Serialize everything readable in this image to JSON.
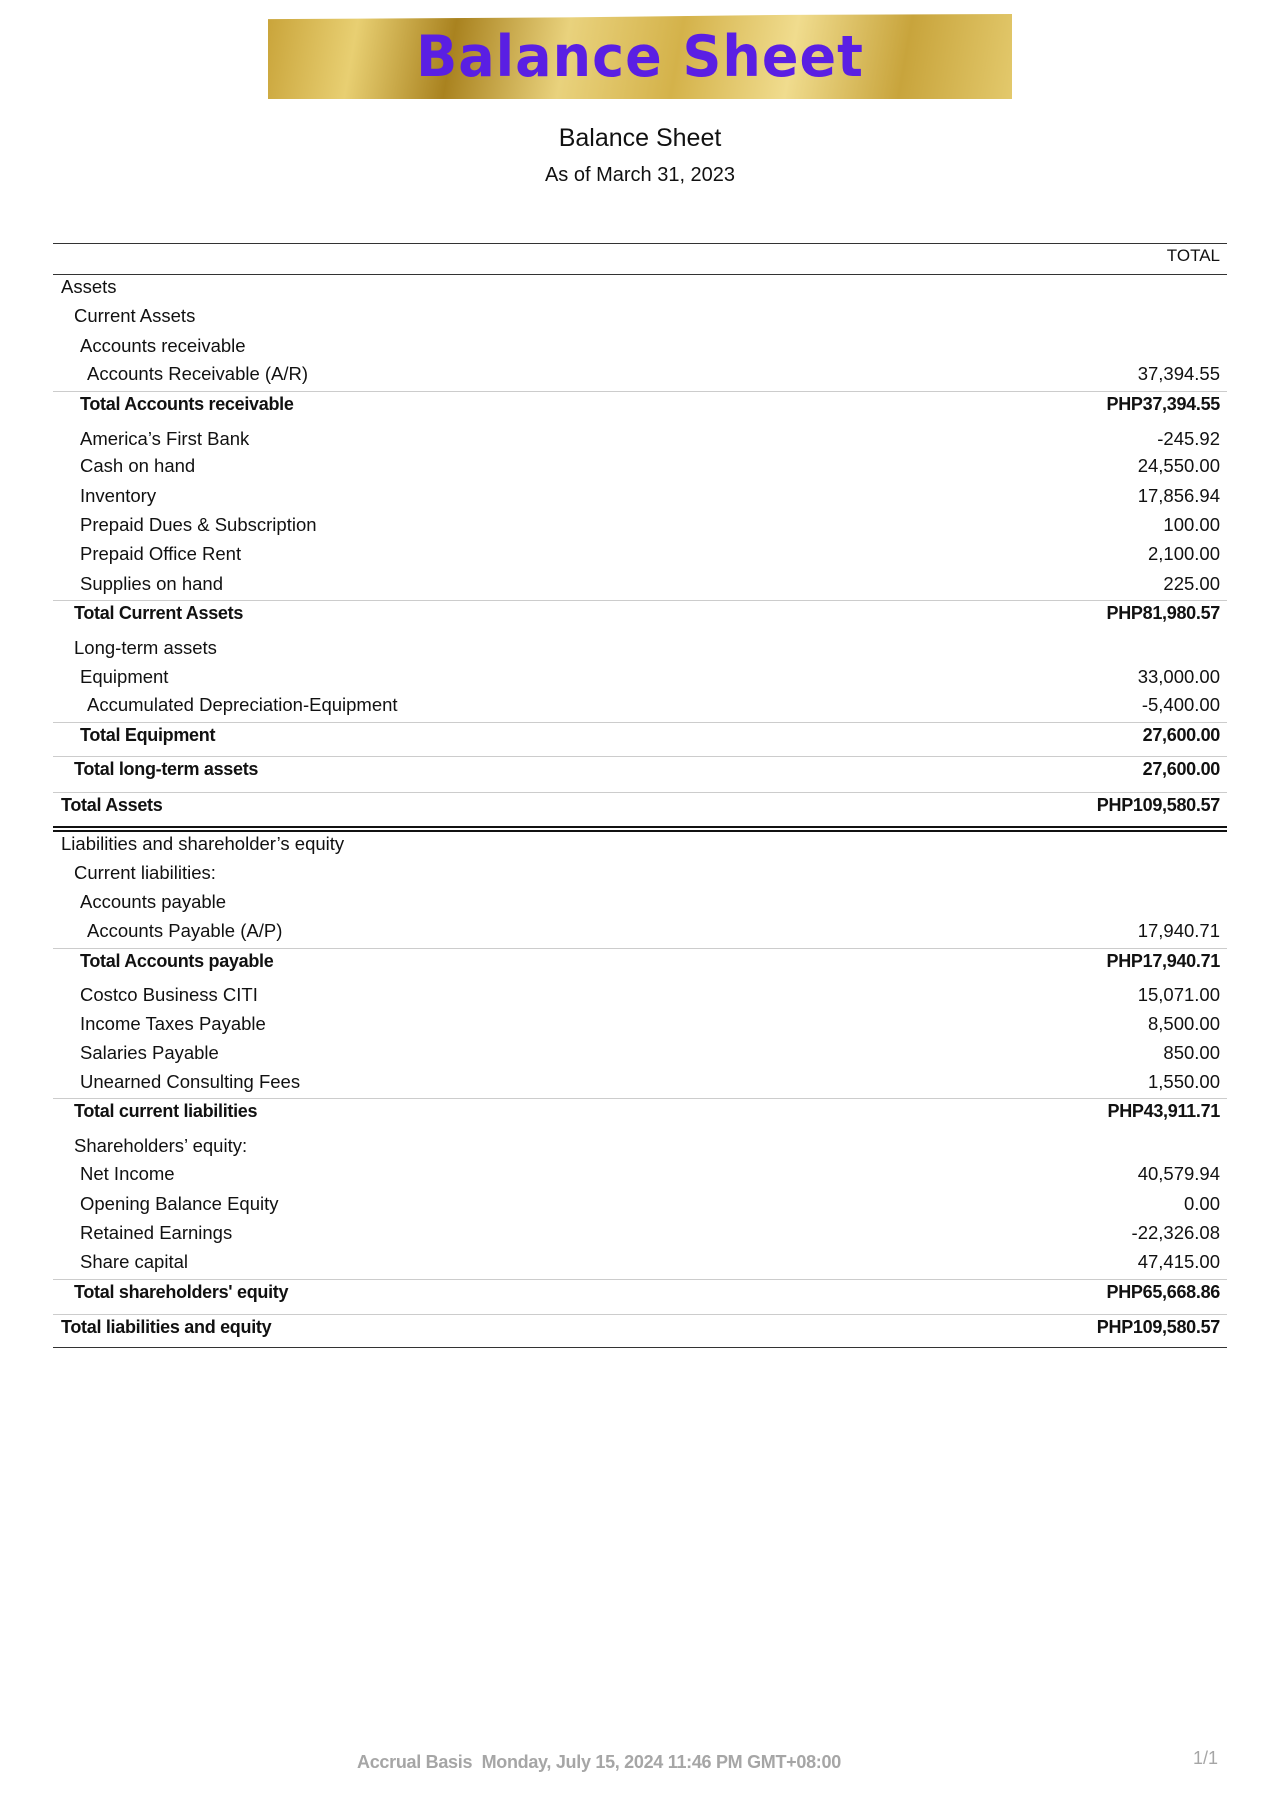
{
  "banner": {
    "text": "Balance Sheet",
    "text_color": "#5a1fe3"
  },
  "report": {
    "title": "Balance Sheet",
    "subtitle": "As of March 31, 2023",
    "column_header": "TOTAL"
  },
  "rows": [
    {
      "label": "Assets",
      "amount": "",
      "level": 0,
      "bold": false
    },
    {
      "label": "Current Assets",
      "amount": "",
      "level": 1,
      "bold": false
    },
    {
      "label": "Accounts receivable",
      "amount": "",
      "level": 2,
      "bold": false
    },
    {
      "label": "Accounts Receivable (A/R)",
      "amount": "37,394.55",
      "level": 3,
      "bold": false
    },
    {
      "label": "Total Accounts receivable",
      "amount": "PHP37,394.55",
      "level": 2,
      "bold": true
    },
    {
      "label": "America’s First Bank",
      "amount": "-245.92",
      "level": 2,
      "bold": false
    },
    {
      "label": "Cash on hand",
      "amount": "24,550.00",
      "level": 2,
      "bold": false
    },
    {
      "label": "Inventory",
      "amount": "17,856.94",
      "level": 2,
      "bold": false
    },
    {
      "label": "Prepaid Dues & Subscription",
      "amount": "100.00",
      "level": 2,
      "bold": false
    },
    {
      "label": "Prepaid Office Rent",
      "amount": "2,100.00",
      "level": 2,
      "bold": false
    },
    {
      "label": "Supplies on hand",
      "amount": "225.00",
      "level": 2,
      "bold": false
    },
    {
      "label": "Total Current Assets",
      "amount": "PHP81,980.57",
      "level": 1,
      "bold": true
    },
    {
      "label": "Long-term assets",
      "amount": "",
      "level": 1,
      "bold": false
    },
    {
      "label": "Equipment",
      "amount": "33,000.00",
      "level": 2,
      "bold": false
    },
    {
      "label": "Accumulated Depreciation-Equipment",
      "amount": "-5,400.00",
      "level": 3,
      "bold": false
    },
    {
      "label": "Total Equipment",
      "amount": "27,600.00",
      "level": 2,
      "bold": true
    },
    {
      "label": "Total long-term assets",
      "amount": "27,600.00",
      "level": 1,
      "bold": true
    },
    {
      "label": "Total Assets",
      "amount": "PHP109,580.57",
      "level": 0,
      "bold": true
    },
    {
      "label": "Liabilities and shareholder’s equity",
      "amount": "",
      "level": 0,
      "bold": false
    },
    {
      "label": "Current liabilities:",
      "amount": "",
      "level": 1,
      "bold": false
    },
    {
      "label": "Accounts payable",
      "amount": "",
      "level": 2,
      "bold": false
    },
    {
      "label": "Accounts Payable (A/P)",
      "amount": "17,940.71",
      "level": 3,
      "bold": false
    },
    {
      "label": "Total Accounts payable",
      "amount": "PHP17,940.71",
      "level": 2,
      "bold": true
    },
    {
      "label": "Costco Business CITI",
      "amount": "15,071.00",
      "level": 2,
      "bold": false
    },
    {
      "label": "Income Taxes Payable",
      "amount": "8,500.00",
      "level": 2,
      "bold": false
    },
    {
      "label": "Salaries Payable",
      "amount": "850.00",
      "level": 2,
      "bold": false
    },
    {
      "label": "Unearned Consulting Fees",
      "amount": "1,550.00",
      "level": 2,
      "bold": false
    },
    {
      "label": "Total current liabilities",
      "amount": "PHP43,911.71",
      "level": 1,
      "bold": true
    },
    {
      "label": "Shareholders’ equity:",
      "amount": "",
      "level": 1,
      "bold": false
    },
    {
      "label": "Net Income",
      "amount": "40,579.94",
      "level": 2,
      "bold": false
    },
    {
      "label": "Opening Balance Equity",
      "amount": "0.00",
      "level": 2,
      "bold": false
    },
    {
      "label": "Retained Earnings",
      "amount": "-22,326.08",
      "level": 2,
      "bold": false
    },
    {
      "label": "Share capital",
      "amount": "47,415.00",
      "level": 2,
      "bold": false
    },
    {
      "label": "Total shareholders' equity",
      "amount": "PHP65,668.86",
      "level": 1,
      "bold": true
    },
    {
      "label": "Total liabilities and equity",
      "amount": "PHP109,580.57",
      "level": 0,
      "bold": true
    }
  ],
  "footer": {
    "text": "Accrual Basis  Monday, July 15, 2024 11:46 PM GMT+08:00",
    "page": "1/1"
  }
}
